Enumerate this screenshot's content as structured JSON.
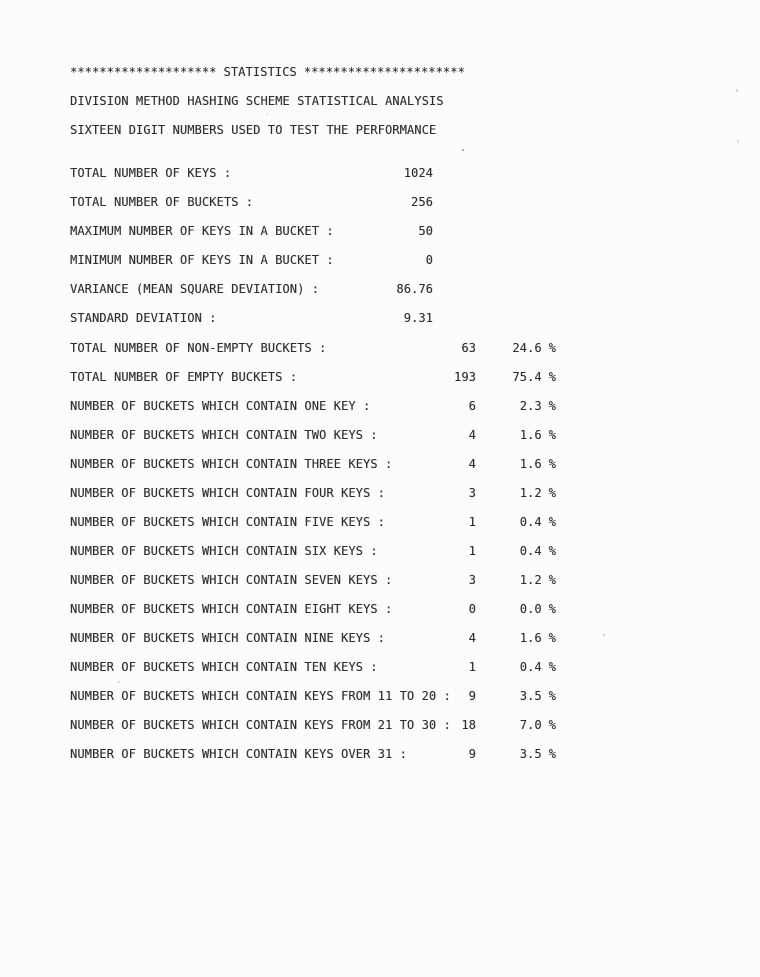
{
  "document": {
    "header": {
      "stars_left": "********************",
      "title": "STATISTICS",
      "stars_right": "**********************",
      "subtitle1": "DIVISION METHOD HASHING SCHEME STATISTICAL ANALYSIS",
      "subtitle2": "SIXTEEN DIGIT NUMBERS USED TO TEST THE PERFORMANCE"
    },
    "summary_rows": [
      {
        "label": "TOTAL NUMBER OF KEYS :",
        "value": "1024"
      },
      {
        "label": "TOTAL NUMBER OF BUCKETS :",
        "value": "256"
      },
      {
        "label": "MAXIMUM NUMBER OF KEYS IN A BUCKET :",
        "value": "50"
      },
      {
        "label": "MINIMUM NUMBER OF KEYS IN A BUCKET :",
        "value": "0"
      },
      {
        "label": "VARIANCE (MEAN SQUARE DEVIATION) :",
        "value": "86.76"
      },
      {
        "label": "STANDARD DEVIATION :",
        "value": "9.31"
      }
    ],
    "distribution": {
      "percent_unit": "%",
      "rows": [
        {
          "label": "TOTAL NUMBER OF NON-EMPTY BUCKETS :",
          "count": "63",
          "percent": "24.6"
        },
        {
          "label": "TOTAL NUMBER OF EMPTY BUCKETS :",
          "count": "193",
          "percent": "75.4"
        },
        {
          "label": "NUMBER OF BUCKETS WHICH CONTAIN ONE KEY :",
          "count": "6",
          "percent": "2.3"
        },
        {
          "label": "NUMBER OF BUCKETS WHICH CONTAIN TWO KEYS :",
          "count": "4",
          "percent": "1.6"
        },
        {
          "label": "NUMBER OF BUCKETS WHICH CONTAIN THREE KEYS :",
          "count": "4",
          "percent": "1.6"
        },
        {
          "label": "NUMBER OF BUCKETS WHICH CONTAIN FOUR KEYS :",
          "count": "3",
          "percent": "1.2"
        },
        {
          "label": "NUMBER OF BUCKETS WHICH CONTAIN FIVE KEYS :",
          "count": "1",
          "percent": "0.4"
        },
        {
          "label": "NUMBER OF BUCKETS WHICH CONTAIN SIX KEYS :",
          "count": "1",
          "percent": "0.4"
        },
        {
          "label": "NUMBER OF BUCKETS WHICH CONTAIN SEVEN KEYS :",
          "count": "3",
          "percent": "1.2"
        },
        {
          "label": "NUMBER OF BUCKETS WHICH CONTAIN EIGHT KEYS :",
          "count": "0",
          "percent": "0.0"
        },
        {
          "label": "NUMBER OF BUCKETS WHICH CONTAIN NINE KEYS :",
          "count": "4",
          "percent": "1.6"
        },
        {
          "label": "NUMBER OF BUCKETS WHICH CONTAIN TEN KEYS :",
          "count": "1",
          "percent": "0.4"
        },
        {
          "label": "NUMBER OF BUCKETS WHICH CONTAIN KEYS FROM 11 TO 20 :",
          "count": "9",
          "percent": "3.5"
        },
        {
          "label": "NUMBER OF BUCKETS WHICH CONTAIN KEYS FROM 21 TO 30 :",
          "count": "18",
          "percent": "7.0"
        },
        {
          "label": "NUMBER OF BUCKETS WHICH CONTAIN KEYS OVER 31 :",
          "count": "9",
          "percent": "3.5"
        }
      ]
    }
  }
}
